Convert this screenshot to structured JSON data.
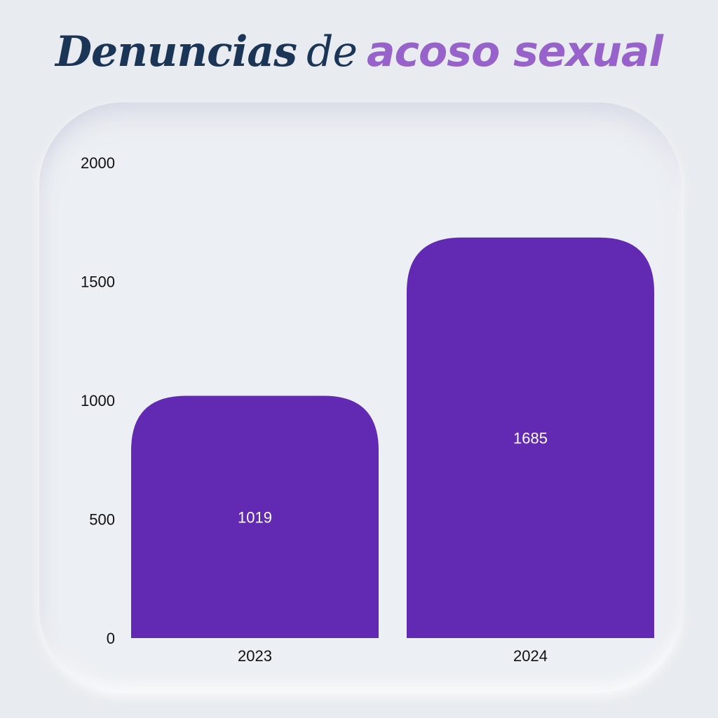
{
  "title": {
    "part1": "Denuncias",
    "part2": "de",
    "part3": "acoso sexual",
    "accent_color": "#9763cb",
    "primary_color": "#1b3556"
  },
  "chart_data": {
    "type": "bar",
    "title": "Denuncias de acoso sexual",
    "categories": [
      "2023",
      "2024"
    ],
    "values": [
      1019,
      1685
    ],
    "data_labels": [
      "1019",
      "1685"
    ],
    "y_ticks": [
      "0",
      "500",
      "1000",
      "1500",
      "2000"
    ],
    "ylim": [
      0,
      2000
    ],
    "xlabel": "",
    "ylabel": "",
    "grid": false,
    "bar_color": "#6229b3"
  }
}
